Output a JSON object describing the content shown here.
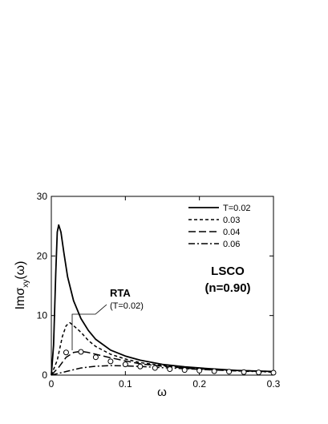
{
  "chart_data": {
    "type": "line",
    "ylabel": "Imσxy(ω)",
    "ylabel_main": "Imσ",
    "ylabel_sub": "xy",
    "ylabel_tail": "(ω)",
    "xlabel": "ω",
    "xlim": [
      0,
      0.3
    ],
    "ylim": [
      0,
      30
    ],
    "xticks": [
      0,
      0.1,
      0.2,
      0.3
    ],
    "xtick_labels": [
      "0",
      "0.1",
      "0.2",
      "0.3"
    ],
    "yticks": [
      0,
      10,
      20,
      30
    ],
    "ytick_labels": [
      "0",
      "10",
      "20",
      "30"
    ],
    "grid": false,
    "legend_position": "top-right",
    "annotation_title": "LSCO",
    "annotation_subtitle": "(n=0.90)",
    "rta_label": "RTA",
    "rta_sublabel": "(T=0.02)",
    "series": [
      {
        "name": "T=0.02",
        "style": "solid",
        "x": [
          0.0,
          0.003,
          0.006,
          0.008,
          0.01,
          0.013,
          0.017,
          0.022,
          0.03,
          0.04,
          0.05,
          0.06,
          0.08,
          0.1,
          0.12,
          0.15,
          0.18,
          0.21,
          0.25,
          0.3
        ],
        "y": [
          0.0,
          5.0,
          17.0,
          24.0,
          25.2,
          24.0,
          20.5,
          16.5,
          12.5,
          9.5,
          7.5,
          6.0,
          4.2,
          3.2,
          2.5,
          1.8,
          1.4,
          1.1,
          0.8,
          0.6
        ]
      },
      {
        "name": "0.03",
        "style": "dashed",
        "x": [
          0.0,
          0.008,
          0.015,
          0.02,
          0.025,
          0.03,
          0.04,
          0.05,
          0.06,
          0.08,
          0.1,
          0.12,
          0.15,
          0.2,
          0.25,
          0.3
        ],
        "y": [
          0.0,
          2.5,
          6.5,
          8.3,
          8.8,
          8.3,
          7.2,
          5.8,
          4.8,
          3.5,
          2.7,
          2.1,
          1.6,
          1.1,
          0.8,
          0.6
        ]
      },
      {
        "name": "0.04",
        "style": "longdash",
        "x": [
          0.0,
          0.01,
          0.02,
          0.03,
          0.04,
          0.05,
          0.06,
          0.08,
          0.1,
          0.12,
          0.15,
          0.2,
          0.25,
          0.3
        ],
        "y": [
          0.0,
          1.3,
          3.0,
          3.8,
          4.0,
          3.8,
          3.5,
          2.9,
          2.4,
          1.9,
          1.5,
          1.0,
          0.75,
          0.55
        ]
      },
      {
        "name": "0.06",
        "style": "dashdot",
        "x": [
          0.0,
          0.02,
          0.04,
          0.06,
          0.08,
          0.1,
          0.12,
          0.15,
          0.2,
          0.25,
          0.3
        ],
        "y": [
          0.0,
          0.6,
          1.2,
          1.5,
          1.6,
          1.55,
          1.45,
          1.25,
          0.95,
          0.7,
          0.5
        ]
      }
    ],
    "rta_points": {
      "x": [
        0.02,
        0.04,
        0.06,
        0.08,
        0.1,
        0.12,
        0.14,
        0.16,
        0.18,
        0.2,
        0.22,
        0.24,
        0.26,
        0.28,
        0.3
      ],
      "y": [
        3.8,
        3.9,
        3.0,
        2.3,
        1.8,
        1.45,
        1.2,
        1.0,
        0.85,
        0.75,
        0.65,
        0.58,
        0.5,
        0.45,
        0.4
      ]
    }
  }
}
